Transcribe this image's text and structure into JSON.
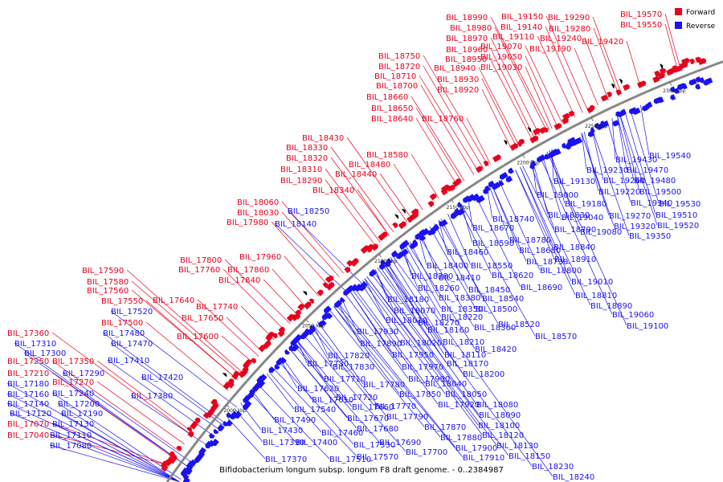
{
  "caption": "Bifidobacterium longum subsp. longum F8 draft genome. - 0..2384987",
  "legend": [
    {
      "label": "Forward",
      "color": "#e8001c"
    },
    {
      "label": "Reverse",
      "color": "#1a12f0"
    }
  ],
  "colors": {
    "forward": "#e8001c",
    "reverse": "#1a12f0",
    "backbone": "#888888",
    "tickmark": "#000000"
  },
  "ticks": [
    "2000 kbp",
    "2050 kbp",
    "2100 kbp",
    "2150 kbp",
    "2200 kbp",
    "2250 kbp",
    "2300 kbp"
  ],
  "forward_labels": [
    "BIL_17360",
    "BIL_17250",
    "BIL_17350",
    "BIL_17210",
    "BIL_17270",
    "BIL_17070",
    "BIL_17040",
    "BIL_17590",
    "BIL_17580",
    "BIL_17560",
    "BIL_17550",
    "BIL_17640",
    "BIL_17500",
    "BIL_17740",
    "BIL_17650",
    "BIL_17600",
    "BIL_17800",
    "BIL_17760",
    "BIL_17860",
    "BIL_17960",
    "BIL_17840",
    "BIL_18060",
    "BIL_18030",
    "BIL_17980",
    "BIL_18430",
    "BIL_18330",
    "BIL_18320",
    "BIL_18310",
    "BIL_18290",
    "BIL_18340",
    "BIL_18580",
    "BIL_18480",
    "BIL_18440",
    "BIL_18750",
    "BIL_18720",
    "BIL_18710",
    "BIL_18700",
    "BIL_18660",
    "BIL_18650",
    "BIL_18640",
    "BIL_18760",
    "BIL_18990",
    "BIL_18980",
    "BIL_18970",
    "BIL_18960",
    "BIL_18950",
    "BIL_18940",
    "BIL_18930",
    "BIL_18920",
    "BIL_19150",
    "BIL_19140",
    "BIL_19110",
    "BIL_19070",
    "BIL_19050",
    "BIL_19030",
    "BIL_19290",
    "BIL_19280",
    "BIL_19240",
    "BIL_19190",
    "BIL_19420",
    "BIL_19570",
    "BIL_19550"
  ],
  "reverse_labels": [
    "BIL_17310",
    "BIL_17300",
    "BIL_17290",
    "BIL_17180",
    "BIL_17240",
    "BIL_17160",
    "BIL_17140",
    "BIL_17200",
    "BIL_17120",
    "BIL_17190",
    "BIL_17130",
    "BIL_17110",
    "BIL_17080",
    "BIL_17520",
    "BIL_17480",
    "BIL_17470",
    "BIL_17410",
    "BIL_17420",
    "BIL_17380",
    "BIL_18250",
    "BIL_18140",
    "BIL_18460",
    "BIL_18400",
    "BIL_18410",
    "BIL_18280",
    "BIL_18260",
    "BIL_18180",
    "BIL_18070",
    "BIL_18010",
    "BIL_17930",
    "BIL_17890",
    "BIL_17820",
    "BIL_17830",
    "BIL_17730",
    "BIL_17710",
    "BIL_17620",
    "BIL_17610",
    "BIL_17540",
    "BIL_17490",
    "BIL_17430",
    "BIL_17390",
    "BIL_17370",
    "BIL_17400",
    "BIL_17460",
    "BIL_17530",
    "BIL_17570",
    "BIL_17510",
    "BIL_17720",
    "BIL_17780",
    "BIL_17660",
    "BIL_17670",
    "BIL_17680",
    "BIL_17690",
    "BIL_17700",
    "BIL_17770",
    "BIL_17790",
    "BIL_17850",
    "BIL_17870",
    "BIL_17880",
    "BIL_17900",
    "BIL_17910",
    "BIL_17920",
    "BIL_17950",
    "BIL_17970",
    "BIL_17990",
    "BIL_18020",
    "BIL_18040",
    "BIL_18050",
    "BIL_18080",
    "BIL_18090",
    "BIL_18100",
    "BIL_18110",
    "BIL_18120",
    "BIL_18130",
    "BIL_18150",
    "BIL_18160",
    "BIL_18170",
    "BIL_18200",
    "BIL_18210",
    "BIL_18220",
    "BIL_18230",
    "BIL_18240",
    "BIL_18270",
    "BIL_18350",
    "BIL_18360",
    "BIL_18380",
    "BIL_18420",
    "BIL_18450",
    "BIL_18500",
    "BIL_18520",
    "BIL_18540",
    "BIL_18550",
    "BIL_18570",
    "BIL_18590",
    "BIL_18620",
    "BIL_18670",
    "BIL_18680",
    "BIL_18690",
    "BIL_18730",
    "BIL_18740",
    "BIL_18780",
    "BIL_18790",
    "BIL_18800",
    "BIL_18810",
    "BIL_18830",
    "BIL_18840",
    "BIL_18890",
    "BIL_18910",
    "BIL_19000",
    "BIL_19010",
    "BIL_19040",
    "BIL_19060",
    "BIL_19080",
    "BIL_19100",
    "BIL_19130",
    "BIL_19180",
    "BIL_19220",
    "BIL_19230",
    "BIL_19260",
    "BIL_19270",
    "BIL_19320",
    "BIL_19340",
    "BIL_19350",
    "BIL_19430",
    "BIL_19470",
    "BIL_19480",
    "BIL_19500",
    "BIL_19510",
    "BIL_19520",
    "BIL_19530",
    "BIL_19540"
  ]
}
